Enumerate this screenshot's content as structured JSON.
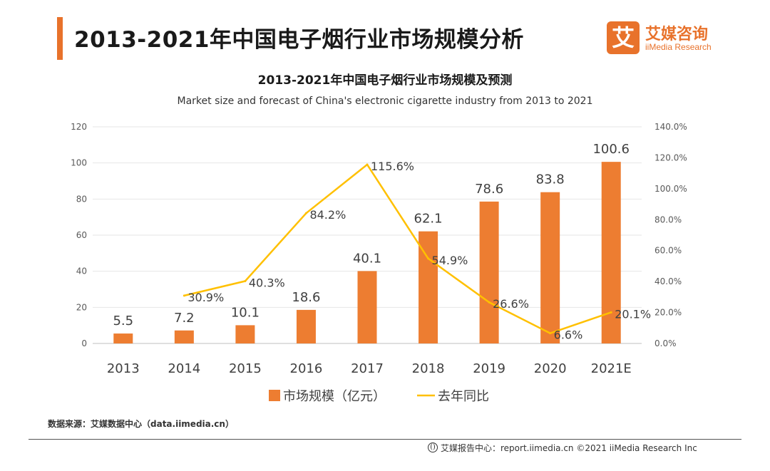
{
  "header": {
    "title": "2013-2021年中国电子烟行业市场规模分析",
    "logo_mark": "艾",
    "logo_cn": "艾媒咨询",
    "logo_en": "iiMedia Research",
    "accent_color": "#e8722b"
  },
  "chart_data": {
    "type": "bar",
    "title": "2013-2021年中国电子烟行业市场规模及预测",
    "subtitle": "Market size and forecast of China's electronic cigarette industry from 2013 to 2021",
    "categories": [
      "2013",
      "2014",
      "2015",
      "2016",
      "2017",
      "2018",
      "2019",
      "2020",
      "2021E"
    ],
    "series": [
      {
        "name": "市场规模（亿元）",
        "type": "bar",
        "axis": "left",
        "color": "#ed7d31",
        "values": [
          5.5,
          7.2,
          10.1,
          18.6,
          40.1,
          62.1,
          78.6,
          83.8,
          100.6
        ],
        "labels": [
          "5.5",
          "7.2",
          "10.1",
          "18.6",
          "40.1",
          "62.1",
          "78.6",
          "83.8",
          "100.6"
        ]
      },
      {
        "name": "去年同比",
        "type": "line",
        "axis": "right",
        "color": "#ffc000",
        "values": [
          null,
          30.9,
          40.3,
          84.2,
          115.6,
          54.9,
          26.6,
          6.6,
          20.1
        ],
        "labels": [
          "",
          "30.9%",
          "40.3%",
          "84.2%",
          "115.6%",
          "54.9%",
          "26.6%",
          "6.6%",
          "20.1%"
        ]
      }
    ],
    "y_left": {
      "ylim": [
        0,
        120
      ],
      "ticks": [
        "0",
        "20",
        "40",
        "60",
        "80",
        "100",
        "120"
      ]
    },
    "y_right": {
      "ylim": [
        0,
        140
      ],
      "ticks": [
        "0.0%",
        "20.0%",
        "40.0%",
        "60.0%",
        "80.0%",
        "100.0%",
        "120.0%",
        "140.0%"
      ]
    },
    "grid": true,
    "legend_position": "bottom"
  },
  "source": "数据来源：艾媒数据中心（data.iimedia.cn）",
  "footer": "艾媒报告中心：report.iimedia.cn  ©2021  iiMedia Research  Inc"
}
